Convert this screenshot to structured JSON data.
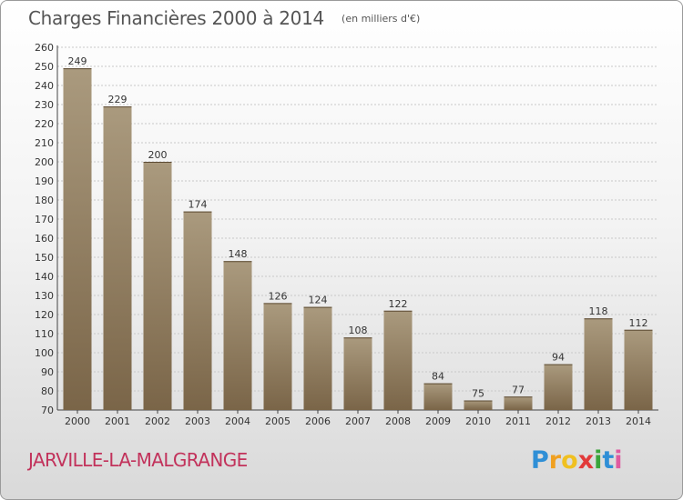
{
  "header": {
    "title": "Charges Financières 2000 à 2014",
    "subtitle": "(en milliers d'€)"
  },
  "footer": {
    "commune": "JARVILLE-LA-MALGRANGE"
  },
  "logo": {
    "text": "Proxiti",
    "letters": [
      "P",
      "r",
      "o",
      "x",
      "i",
      "t",
      "i"
    ],
    "letter_colors": [
      "#2f8fd6",
      "#f0a020",
      "#f0c020",
      "#e23a3a",
      "#3aa53a",
      "#2f8fd6",
      "#e05aa0"
    ]
  },
  "colors": {
    "bar_top": "#aa9a7e",
    "bar_bottom": "#7a6548",
    "grid": "#c8c8c8",
    "axis": "#444444"
  },
  "chart_data": {
    "type": "bar",
    "title": "Charges Financières 2000 à 2014",
    "subtitle": "(en milliers d'€)",
    "categories": [
      "2000",
      "2001",
      "2002",
      "2003",
      "2004",
      "2005",
      "2006",
      "2007",
      "2008",
      "2009",
      "2010",
      "2011",
      "2012",
      "2013",
      "2014"
    ],
    "values": [
      249,
      229,
      200,
      174,
      148,
      126,
      124,
      108,
      122,
      84,
      75,
      77,
      94,
      118,
      112
    ],
    "data_labels": [
      "249",
      "229",
      "200",
      "174",
      "148",
      "126",
      "124",
      "108",
      "122",
      "84",
      "75",
      "77",
      "94",
      "118",
      "112"
    ],
    "ylim": [
      70,
      260
    ],
    "ytick_step": 10,
    "ytick_labels": [
      "70",
      "80",
      "90",
      "100",
      "110",
      "120",
      "130",
      "140",
      "150",
      "160",
      "170",
      "180",
      "190",
      "200",
      "210",
      "220",
      "230",
      "240",
      "250",
      "260"
    ],
    "grid": true,
    "legend": false
  }
}
